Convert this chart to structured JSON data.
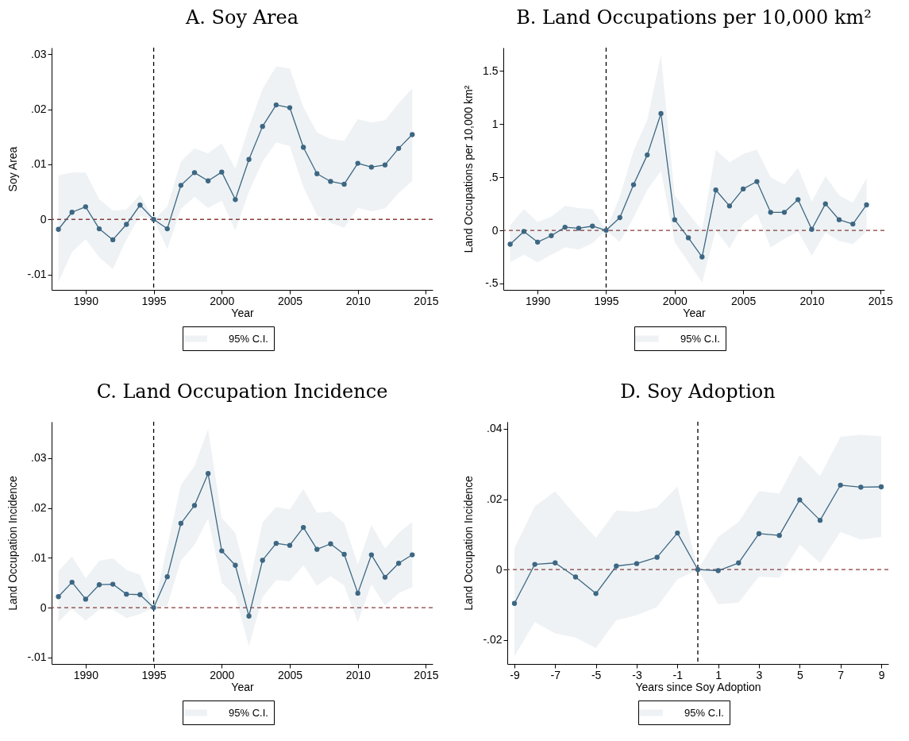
{
  "chart_data": [
    {
      "type": "line",
      "title": "A. Soy Area",
      "xlabel": "Year",
      "ylabel": "Soy Area",
      "marker": "circle",
      "legend": "bottom",
      "x": [
        1988,
        1989,
        1990,
        1991,
        1992,
        1993,
        1994,
        1995,
        1996,
        1997,
        1998,
        1999,
        2000,
        2001,
        2002,
        2003,
        2004,
        2005,
        2006,
        2007,
        2008,
        2009,
        2010,
        2011,
        2012,
        2013,
        2014
      ],
      "xlim": [
        1987.5,
        2015.5
      ],
      "xticks": [
        1990,
        1995,
        2000,
        2005,
        2010,
        2015
      ],
      "ylim": [
        -0.0128,
        0.0312
      ],
      "yticks": [
        {
          "value": -0.01,
          "label": "-.01"
        },
        0,
        {
          "value": 0.01,
          "label": ".01"
        },
        {
          "value": 0.02,
          "label": ".02"
        },
        {
          "value": 0.03,
          "label": ".03"
        }
      ],
      "ref_lines": [
        {
          "axis": "y",
          "value": 0,
          "color": "#8b3a3a",
          "line_style": "dashed"
        },
        {
          "axis": "x",
          "value": 1995,
          "color": "#000000",
          "line_style": "dashed"
        }
      ],
      "series": [
        {
          "name": "95% C.I.",
          "color": "#3d6783",
          "values": [
            -0.0018,
            0.0013,
            0.0023,
            -0.0017,
            -0.0037,
            -0.0009,
            0.0026,
            0,
            -0.0017,
            0.0062,
            0.0085,
            0.007,
            0.0086,
            0.0036,
            0.0109,
            0.0169,
            0.0208,
            0.0203,
            0.0131,
            0.0083,
            0.0069,
            0.0064,
            0.0102,
            0.0095,
            0.0099,
            0.0129,
            0.0154
          ],
          "lower": [
            -0.0114,
            -0.0059,
            -0.0036,
            -0.0069,
            -0.009,
            -0.0036,
            0.0006,
            0,
            -0.0054,
            0.0019,
            0.0041,
            0.0021,
            0.0034,
            -0.002,
            0.005,
            0.0105,
            0.014,
            0.0133,
            0.0059,
            0.0008,
            -0.0006,
            -0.0015,
            0.0021,
            0.0015,
            0.002,
            0.0048,
            0.007
          ],
          "upper": [
            0.008,
            0.0085,
            0.0085,
            0.0037,
            0.0016,
            0.0018,
            0.0045,
            0,
            0.0023,
            0.0105,
            0.0129,
            0.012,
            0.0138,
            0.0092,
            0.0168,
            0.0237,
            0.0278,
            0.0274,
            0.0204,
            0.0158,
            0.0146,
            0.0143,
            0.0182,
            0.0176,
            0.018,
            0.0211,
            0.0238
          ]
        }
      ]
    },
    {
      "type": "line",
      "title": "B. Land Occupations per 10,000 km²",
      "xlabel": "Year",
      "ylabel": "Land Occupations per 10,000 km²",
      "marker": "circle",
      "legend": "bottom",
      "x": [
        1988,
        1989,
        1990,
        1991,
        1992,
        1993,
        1994,
        1995,
        1996,
        1997,
        1998,
        1999,
        2000,
        2001,
        2002,
        2003,
        2004,
        2005,
        2006,
        2007,
        2008,
        2009,
        2010,
        2011,
        2012,
        2013,
        2014
      ],
      "xlim": [
        1987.5,
        2015.3
      ],
      "xticks": [
        1990,
        1995,
        2000,
        2005,
        2010,
        2015
      ],
      "ylim": [
        -0.56,
        1.72
      ],
      "yticks": [
        {
          "value": -0.5,
          "label": "-.5"
        },
        0,
        {
          "value": 0.5,
          "label": ".5"
        },
        1,
        1.5
      ],
      "ref_lines": [
        {
          "axis": "y",
          "value": 0,
          "color": "#8b3a3a",
          "line_style": "dashed"
        },
        {
          "axis": "x",
          "value": 1995,
          "color": "#000000",
          "line_style": "dashed"
        }
      ],
      "series": [
        {
          "name": "95% C.I.",
          "color": "#3d6783",
          "values": [
            -0.13,
            -0.01,
            -0.11,
            -0.05,
            0.03,
            0.02,
            0.04,
            0,
            0.12,
            0.43,
            0.71,
            1.1,
            0.1,
            -0.07,
            -0.25,
            0.38,
            0.23,
            0.39,
            0.46,
            0.17,
            0.17,
            0.29,
            0.01,
            0.25,
            0.1,
            0.06,
            0.24
          ],
          "lower": [
            -0.3,
            -0.23,
            -0.3,
            -0.23,
            -0.16,
            -0.18,
            -0.12,
            0,
            -0.11,
            0.12,
            0.38,
            0.56,
            -0.11,
            -0.3,
            -0.49,
            0,
            -0.17,
            0.06,
            0.16,
            -0.16,
            -0.08,
            -0.01,
            -0.24,
            -0.02,
            -0.1,
            -0.13,
            -0.01
          ],
          "upper": [
            0.05,
            0.2,
            0.08,
            0.13,
            0.23,
            0.21,
            0.2,
            0,
            0.32,
            0.75,
            1.04,
            1.65,
            0.33,
            0.16,
            0,
            0.76,
            0.64,
            0.72,
            0.76,
            0.5,
            0.43,
            0.59,
            0.27,
            0.51,
            0.33,
            0.26,
            0.49
          ]
        }
      ]
    },
    {
      "type": "line",
      "title": "C. Land Occupation Incidence",
      "xlabel": "Year",
      "ylabel": "Land Occupation Incidence",
      "marker": "circle",
      "legend": "bottom",
      "x": [
        1988,
        1989,
        1990,
        1991,
        1992,
        1993,
        1994,
        1995,
        1996,
        1997,
        1998,
        1999,
        2000,
        2001,
        2002,
        2003,
        2004,
        2005,
        2006,
        2007,
        2008,
        2009,
        2010,
        2011,
        2012,
        2013,
        2014
      ],
      "xlim": [
        1987.5,
        2015.5
      ],
      "xticks": [
        1990,
        1995,
        2000,
        2005,
        2010,
        2015
      ],
      "ylim": [
        -0.0113,
        0.0373
      ],
      "yticks": [
        {
          "value": -0.01,
          "label": "-.01"
        },
        0,
        {
          "value": 0.01,
          "label": ".01"
        },
        {
          "value": 0.02,
          "label": ".02"
        },
        {
          "value": 0.03,
          "label": ".03"
        }
      ],
      "ref_lines": [
        {
          "axis": "y",
          "value": 0,
          "color": "#8b3a3a",
          "line_style": "dashed"
        },
        {
          "axis": "x",
          "value": 1995,
          "color": "#000000",
          "line_style": "dashed"
        }
      ],
      "series": [
        {
          "name": "95% C.I.",
          "color": "#3d6783",
          "values": [
            0.0022,
            0.0051,
            0.0017,
            0.0046,
            0.0047,
            0.0027,
            0.0026,
            0,
            0.0062,
            0.0169,
            0.0205,
            0.0269,
            0.0114,
            0.0085,
            -0.0017,
            0.0095,
            0.0129,
            0.0125,
            0.0161,
            0.0117,
            0.0128,
            0.0107,
            0.0029,
            0.0106,
            0.0061,
            0.0089,
            0.0106
          ],
          "lower": [
            -0.0029,
            -0.0002,
            -0.0026,
            -0.0004,
            -0.0004,
            -0.0021,
            -0.0013,
            0,
            0.0004,
            0.0094,
            0.0126,
            0.0179,
            0.005,
            0.0023,
            -0.0077,
            0.0021,
            0.0055,
            0.0053,
            0.0085,
            0.0044,
            0.0063,
            0.0044,
            -0.0029,
            0.0047,
            0.0004,
            0.0029,
            0.0041
          ],
          "upper": [
            0.0073,
            0.0103,
            0.0059,
            0.0094,
            0.0099,
            0.0076,
            0.0066,
            0,
            0.0123,
            0.0246,
            0.0284,
            0.0358,
            0.018,
            0.015,
            0.0044,
            0.0171,
            0.0202,
            0.0197,
            0.0238,
            0.019,
            0.0193,
            0.017,
            0.0087,
            0.0166,
            0.0119,
            0.015,
            0.0172
          ]
        }
      ]
    },
    {
      "type": "line",
      "title": "D. Soy Adoption",
      "xlabel": "Years since Soy Adoption",
      "ylabel": "Land Occupation Incidence",
      "marker": "circle",
      "legend": "bottom",
      "x": [
        -9,
        -8,
        -7,
        -6,
        -5,
        -4,
        -3,
        -2,
        -1,
        0,
        1,
        2,
        3,
        4,
        5,
        6,
        7,
        8,
        9
      ],
      "xlim": [
        -9.35,
        9.35
      ],
      "xticks": [
        -9,
        -7,
        -5,
        -3,
        -1,
        1,
        3,
        5,
        7,
        9
      ],
      "ylim": [
        -0.0268,
        0.042
      ],
      "yticks": [
        {
          "value": -0.02,
          "label": "-.02"
        },
        0,
        {
          "value": 0.02,
          "label": ".02"
        },
        {
          "value": 0.04,
          "label": ".04"
        }
      ],
      "ref_lines": [
        {
          "axis": "y",
          "value": 0,
          "color": "#8b3a3a",
          "line_style": "dashed"
        },
        {
          "axis": "x",
          "value": 0,
          "color": "#000000",
          "line_style": "dashed"
        }
      ],
      "series": [
        {
          "name": "95% C.I.",
          "color": "#3d6783",
          "values": [
            -0.0096,
            0.0015,
            0.0019,
            -0.0021,
            -0.0068,
            0.001,
            0.0017,
            0.0035,
            0.0104,
            0,
            -0.0003,
            0.0019,
            0.0102,
            0.0097,
            0.0198,
            0.014,
            0.024,
            0.0234,
            0.0235
          ],
          "lower": [
            -0.0246,
            -0.0149,
            -0.0181,
            -0.0193,
            -0.0223,
            -0.0144,
            -0.0129,
            -0.0106,
            -0.0027,
            0,
            -0.0098,
            -0.0094,
            -0.002,
            -0.0023,
            0.0071,
            0.0019,
            0.0107,
            0.0085,
            0.0093
          ],
          "upper": [
            0.0061,
            0.018,
            0.0222,
            0.0154,
            0.009,
            0.0168,
            0.0164,
            0.0177,
            0.0236,
            0,
            0.0093,
            0.0135,
            0.0223,
            0.0216,
            0.0325,
            0.0266,
            0.0377,
            0.0383,
            0.0379
          ]
        }
      ]
    }
  ]
}
